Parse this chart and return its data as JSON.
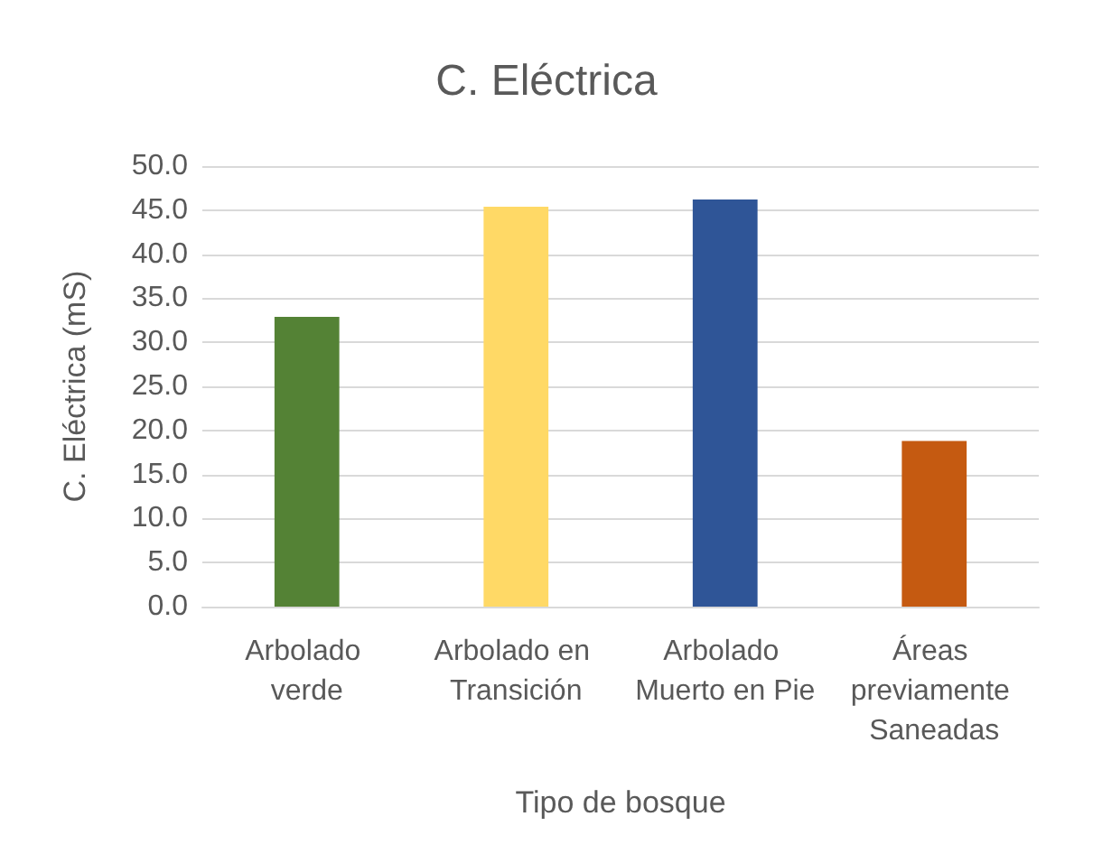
{
  "chart_data": {
    "type": "bar",
    "title": "C. Eléctrica",
    "xlabel": "Tipo de bosque",
    "ylabel": "C. Eléctrica (mS)",
    "categories": [
      "Arbolado verde",
      "Arbolado en Transición",
      "Arbolado Muerto en Pie",
      "Áreas previamente Saneadas"
    ],
    "values": [
      32.9,
      45.4,
      46.2,
      18.8
    ],
    "colors": [
      "#548235",
      "#ffd966",
      "#2f5597",
      "#c55a11"
    ],
    "ylim": [
      0,
      50
    ],
    "yticks": [
      {
        "value": 0,
        "label": "0.0"
      },
      {
        "value": 5,
        "label": "5.0"
      },
      {
        "value": 10,
        "label": "10.0"
      },
      {
        "value": 15,
        "label": "15.0"
      },
      {
        "value": 20,
        "label": "20.0"
      },
      {
        "value": 25,
        "label": "25.0"
      },
      {
        "value": 30,
        "label": "30.0"
      },
      {
        "value": 35,
        "label": "35.0"
      },
      {
        "value": 40,
        "label": "40.0"
      },
      {
        "value": 45,
        "label": "45.0"
      },
      {
        "value": 50,
        "label": "50.0"
      }
    ],
    "grid": "y"
  }
}
